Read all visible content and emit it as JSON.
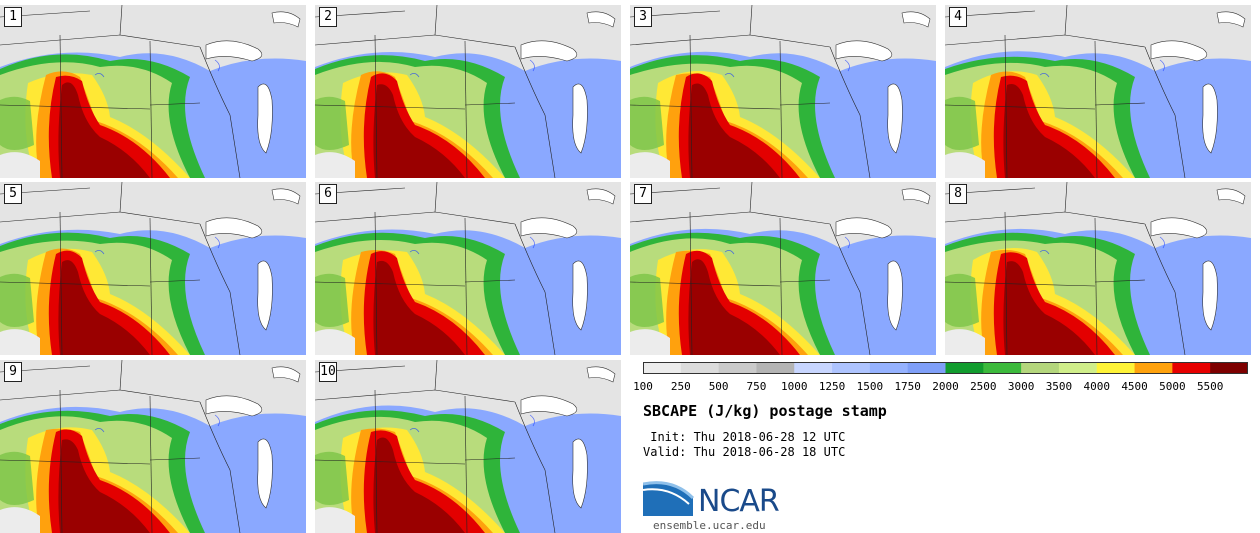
{
  "panels": [
    {
      "label": "1"
    },
    {
      "label": "2"
    },
    {
      "label": "3"
    },
    {
      "label": "4"
    },
    {
      "label": "5"
    },
    {
      "label": "6"
    },
    {
      "label": "7"
    },
    {
      "label": "8"
    },
    {
      "label": "9"
    },
    {
      "label": "10"
    }
  ],
  "colorbar": {
    "ticks": [
      "100",
      "250",
      "500",
      "750",
      "1000",
      "1250",
      "1500",
      "1750",
      "2000",
      "2500",
      "3000",
      "3500",
      "4000",
      "4500",
      "5000",
      "5500"
    ],
    "colors": [
      "#ececec",
      "#dcdcdc",
      "#cacaca",
      "#b4b4b4",
      "#c8d6ff",
      "#aec4ff",
      "#95b2ff",
      "#7f9ff8",
      "#119c2e",
      "#3cba3c",
      "#b4d67c",
      "#d0ee8a",
      "#fff337",
      "#ffa20d",
      "#e60000",
      "#7d0000"
    ]
  },
  "title": "SBCAPE (J/kg) postage stamp",
  "init": " Init: Thu 2018-06-28 12 UTC",
  "valid": "Valid: Thu 2018-06-28 18 UTC",
  "logo": {
    "text": "NCAR",
    "site": "ensemble.ucar.edu"
  }
}
